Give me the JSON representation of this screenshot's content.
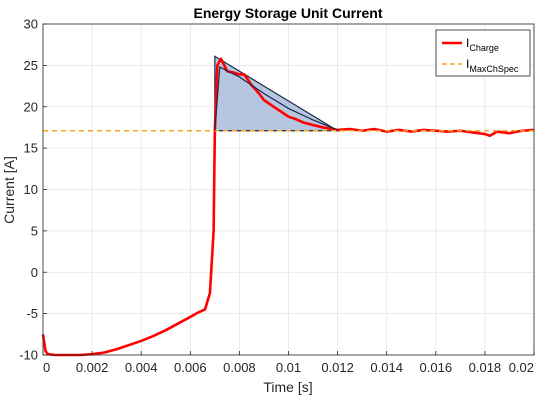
{
  "chart_data": {
    "type": "line",
    "title": "Energy Storage Unit Current",
    "xlabel": "Time [s]",
    "ylabel": "Current [A]",
    "xlim": [
      0,
      0.02
    ],
    "ylim": [
      -10,
      30
    ],
    "x_ticks": [
      0,
      0.002,
      0.004,
      0.006,
      0.008,
      0.01,
      0.012,
      0.014,
      0.016,
      0.018,
      0.02
    ],
    "x_tick_labels": [
      "0",
      "0.002",
      "0.004",
      "0.006",
      "0.008",
      "0.01",
      "0.012",
      "0.014",
      "0.016",
      "0.018",
      "0.02"
    ],
    "y_ticks": [
      -10,
      -5,
      0,
      5,
      10,
      15,
      20,
      25,
      30
    ],
    "y_tick_labels": [
      "-10",
      "-5",
      "0",
      "5",
      "10",
      "15",
      "20",
      "25",
      "30"
    ],
    "grid": true,
    "legend_position": "top-right",
    "legend": [
      {
        "main": "I",
        "sub": "Charge",
        "style": "solid",
        "color": "#ff0000"
      },
      {
        "main": "I",
        "sub": "MaxChSpec",
        "style": "dashed",
        "color": "#f5a623"
      }
    ],
    "series": [
      {
        "name": "I_Charge",
        "color": "#ff0000",
        "x": [
          0,
          0.0001,
          0.0002,
          0.0005,
          0.001,
          0.0015,
          0.002,
          0.0025,
          0.003,
          0.0035,
          0.004,
          0.0045,
          0.005,
          0.0055,
          0.006,
          0.0063,
          0.0066,
          0.0068,
          0.00695,
          0.007,
          0.0071,
          0.00725,
          0.0075,
          0.0078,
          0.008,
          0.0082,
          0.0085,
          0.0088,
          0.009,
          0.0092,
          0.0095,
          0.0098,
          0.01,
          0.0103,
          0.0106,
          0.011,
          0.0114,
          0.0118,
          0.012,
          0.0125,
          0.013,
          0.0135,
          0.014,
          0.0145,
          0.015,
          0.0155,
          0.016,
          0.0165,
          0.017,
          0.0175,
          0.018,
          0.0182,
          0.0185,
          0.019,
          0.0195,
          0.02
        ],
        "y": [
          -7.5,
          -9.5,
          -9.9,
          -10,
          -10,
          -10,
          -9.9,
          -9.7,
          -9.3,
          -8.8,
          -8.3,
          -7.7,
          -7,
          -6.2,
          -5.4,
          -4.9,
          -4.5,
          -2.5,
          5,
          17.2,
          25,
          25.8,
          24.3,
          24.1,
          23.9,
          23.9,
          22.6,
          21.6,
          20.8,
          20.4,
          19.8,
          19.2,
          18.8,
          18.5,
          18.1,
          17.8,
          17.5,
          17.3,
          17.2,
          17.3,
          17.1,
          17.3,
          17.0,
          17.2,
          17.0,
          17.2,
          17.1,
          17.0,
          17.1,
          16.9,
          16.7,
          16.5,
          17.0,
          16.8,
          17.1,
          17.2
        ]
      },
      {
        "name": "I_MaxChSpec",
        "color": "#f5a623",
        "style": "dashed",
        "x": [
          0,
          0.02
        ],
        "y": [
          17.1,
          17.1
        ]
      }
    ],
    "annotations": {
      "shaded_triangle": {
        "vertices": [
          [
            0.007,
            17.1
          ],
          [
            0.007,
            26.1
          ],
          [
            0.012,
            17.1
          ]
        ],
        "fill": "#b3c3de",
        "stroke": "#1a2a4a"
      },
      "trend_line": {
        "x": [
          0.007,
          0.0072,
          0.008,
          0.009,
          0.01,
          0.011,
          0.012
        ],
        "y": [
          17.1,
          24.8,
          23.6,
          21.6,
          19.8,
          18.4,
          17.2
        ],
        "color": "#1a2a4a"
      }
    }
  }
}
